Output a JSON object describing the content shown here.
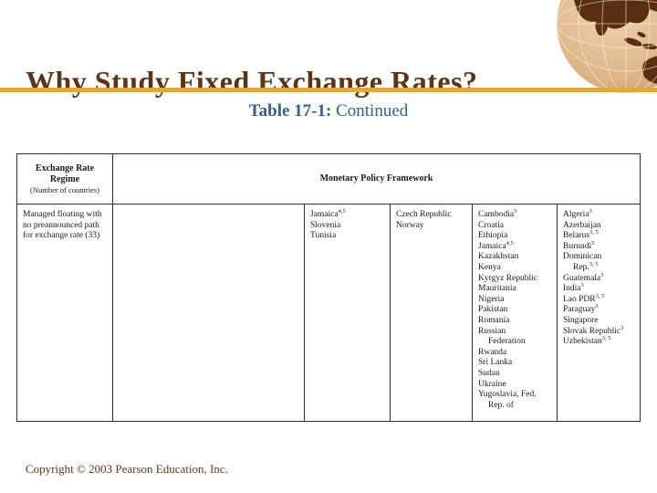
{
  "slide": {
    "title": "Why Study Fixed Exchange Rates?",
    "subtitle_bold": "Table 17-1:",
    "subtitle_rest": " Continued",
    "copyright": "Copyright © 2003 Pearson Education, Inc."
  },
  "colors": {
    "title_text": "#5E3418",
    "subtitle_text": "#33608C",
    "accent_line": "#DFA93F",
    "table_border": "#2e2e2e",
    "body_text": "#1a1a1a",
    "copyright_text": "#5E3A1E",
    "globe_sea": "#D9B083",
    "globe_land": "#5A2E10"
  },
  "table": {
    "header": {
      "regime_line1": "Exchange Rate",
      "regime_line2": "Regime",
      "regime_note": "(Number of countries)",
      "framework": "Monetary Policy Framework"
    },
    "row": {
      "regime": "Managed floating with no preannounced path for exchange rate (33)",
      "columns": [
        [],
        [
          {
            "text": "Jamaica",
            "sup": "4,5"
          },
          {
            "text": "Slovenia"
          },
          {
            "text": "Tunisia"
          }
        ],
        [
          {
            "text": "Czech Republic"
          },
          {
            "text": "Norway"
          }
        ],
        [
          {
            "text": "Cambodia",
            "sup": "5"
          },
          {
            "text": "Croatia"
          },
          {
            "text": "Ethiopia"
          },
          {
            "text": "Jamaica",
            "sup": "4,5"
          },
          {
            "text": "Kazakhstan"
          },
          {
            "text": "Kenya"
          },
          {
            "text": "Kyrgyz Republic"
          },
          {
            "text": "Mauritania"
          },
          {
            "text": "Nigeria"
          },
          {
            "text": "Pakistan"
          },
          {
            "text": "Romania"
          },
          {
            "text": "Russian"
          },
          {
            "text": "Federation",
            "indent": true
          },
          {
            "text": "Rwanda"
          },
          {
            "text": "Sri Lanka"
          },
          {
            "text": "Sudan"
          },
          {
            "text": "Ukraine"
          },
          {
            "text": "Yugoslavia, Fed."
          },
          {
            "text": "Rep. of",
            "indent": true
          }
        ],
        [
          {
            "text": "Algeria",
            "sup": "3"
          },
          {
            "text": "Azerbaijan"
          },
          {
            "text": "Belarus",
            "sup": "3, 5"
          },
          {
            "text": "Burundi",
            "sup": "5"
          },
          {
            "text": "Dominican"
          },
          {
            "text": "Rep.",
            "sup": "3, 5",
            "indent": true
          },
          {
            "text": "Guatemala",
            "sup": "3"
          },
          {
            "text": "India",
            "sup": "3"
          },
          {
            "text": "Lao PDR",
            "sup": "3, 5"
          },
          {
            "text": "Paraguay",
            "sup": "3"
          },
          {
            "text": "Singapore"
          },
          {
            "text": "Slovak Republic",
            "sup": "3"
          },
          {
            "text": "Uzbekistan",
            "sup": "3, 5"
          }
        ]
      ]
    }
  }
}
